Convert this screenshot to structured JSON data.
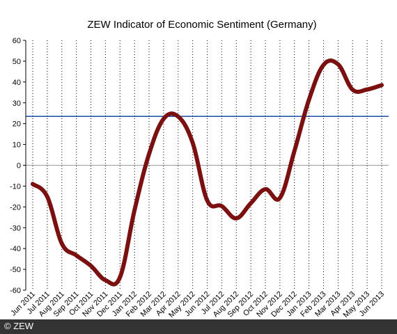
{
  "chart_data": {
    "type": "line",
    "title": "ZEW Indicator of Economic Sentiment (Germany)",
    "categories": [
      "Jun 2011",
      "Jul 2011",
      "Aug 2011",
      "Sep 2011",
      "Oct 2011",
      "Nov 2011",
      "Dec 2011",
      "Jan 2012",
      "Feb 2012",
      "Mar 2012",
      "Apr 2012",
      "May 2012",
      "Jun 2012",
      "Jul 2012",
      "Aug 2012",
      "Sep 2012",
      "Oct 2012",
      "Nov 2012",
      "Dec 2012",
      "Jan 2013",
      "Feb 2013",
      "Mar 2013",
      "Apr 2013",
      "May 2013",
      "Jun 2013"
    ],
    "values": [
      -9.0,
      -15.1,
      -37.6,
      -43.3,
      -48.3,
      -55.2,
      -53.8,
      -21.6,
      5.4,
      22.3,
      23.4,
      10.8,
      -16.9,
      -19.6,
      -25.5,
      -18.2,
      -11.5,
      -15.7,
      6.9,
      31.5,
      48.2,
      48.5,
      36.3,
      36.4,
      38.5
    ],
    "reference_line": 23.5,
    "ylim": [
      -60,
      60
    ],
    "yticks": [
      -60,
      -50,
      -40,
      -30,
      -20,
      -10,
      0,
      10,
      20,
      30,
      40,
      50,
      60
    ],
    "xlabel": "",
    "ylabel": "",
    "grid": true,
    "colors": {
      "series": "#7a1010",
      "reference_line": "#1a4fa8",
      "zero_line": "#9a9a9a",
      "grid": "#000000",
      "footer_bg": "#333333"
    }
  },
  "footer": {
    "credit": "© ZEW"
  }
}
